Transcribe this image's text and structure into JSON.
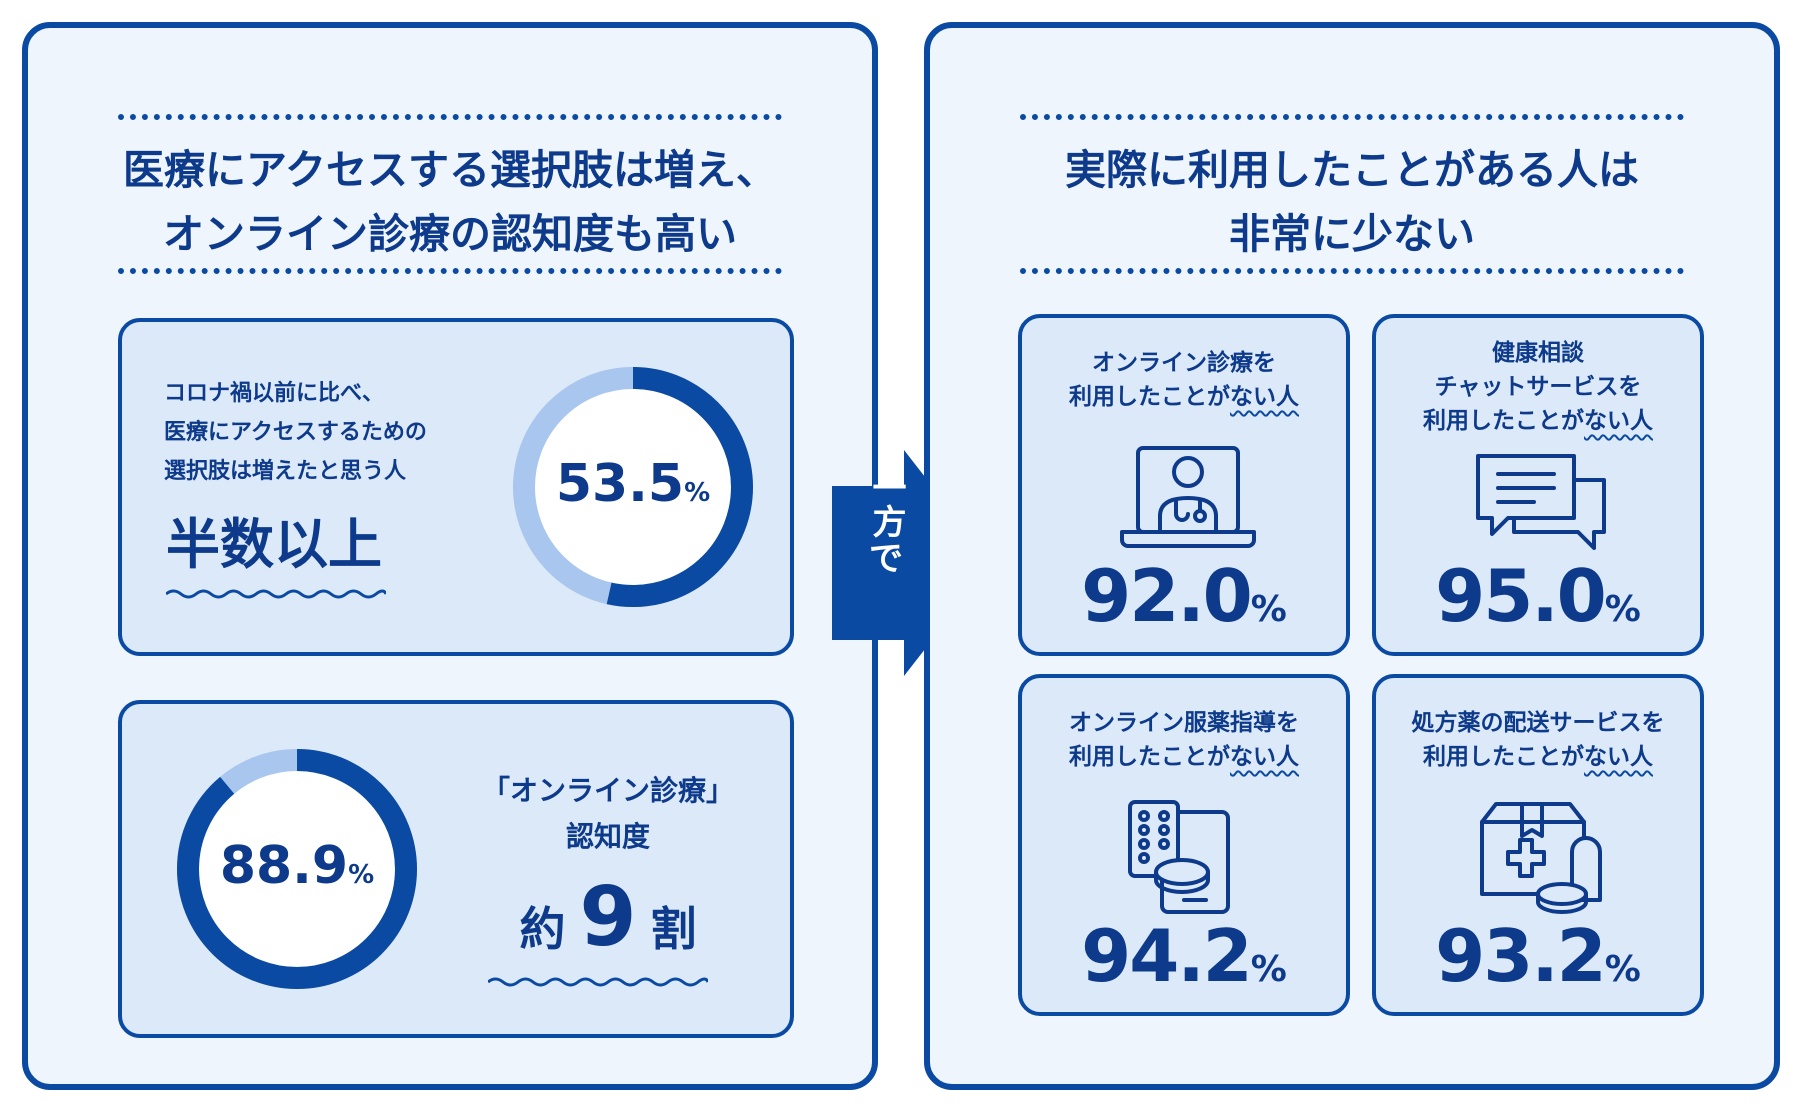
{
  "left": {
    "heading_line1": "医療にアクセスする選択肢は増え、",
    "heading_line2": "オンライン診療の認知度も高い",
    "card1": {
      "desc_line1": "コロナ禍以前に比べ、",
      "desc_line2": "医療にアクセスするための",
      "desc_line3": "選択肢は増えたと思う人",
      "emphasis": "半数以上",
      "value": "53.5",
      "pct": "%",
      "fraction": 0.535
    },
    "card2": {
      "label_line1": "「オンライン診療」",
      "label_line2": "認知度",
      "emphasis_pre": "約",
      "emphasis_num": "9",
      "emphasis_post": "割",
      "value": "88.9",
      "pct": "%",
      "fraction": 0.889
    }
  },
  "arrow": {
    "line1": "一方",
    "line2": "で"
  },
  "right": {
    "heading_line1": "実際に利用したことがある人は",
    "heading_line2": "非常に少ない",
    "stats": [
      {
        "line1": "オンライン診療を",
        "line2_pre": "利用したことが",
        "line2_under": "ない人",
        "line3_pre": "",
        "line3_under": "",
        "value": "92.0",
        "pct": "%",
        "icon": "doctor-laptop-icon"
      },
      {
        "line1": "健康相談",
        "line2_pre": "チャットサービスを",
        "line2_under": "",
        "line3_pre": "利用したことが",
        "line3_under": "ない人",
        "value": "95.0",
        "pct": "%",
        "icon": "chat-bubbles-icon"
      },
      {
        "line1": "オンライン服薬指導を",
        "line2_pre": "利用したことが",
        "line2_under": "ない人",
        "line3_pre": "",
        "line3_under": "",
        "value": "94.2",
        "pct": "%",
        "icon": "tablet-pills-icon"
      },
      {
        "line1": "処方薬の配送サービスを",
        "line2_pre": "利用したことが",
        "line2_under": "ない人",
        "line3_pre": "",
        "line3_under": "",
        "value": "93.2",
        "pct": "%",
        "icon": "medicine-box-icon"
      }
    ]
  },
  "colors": {
    "primary": "#0b4aa2",
    "ring_light": "#a8c6ee",
    "panel_bg": "#eef5fd",
    "card_bg": "#dce9f9",
    "text": "#0d3a8a"
  }
}
